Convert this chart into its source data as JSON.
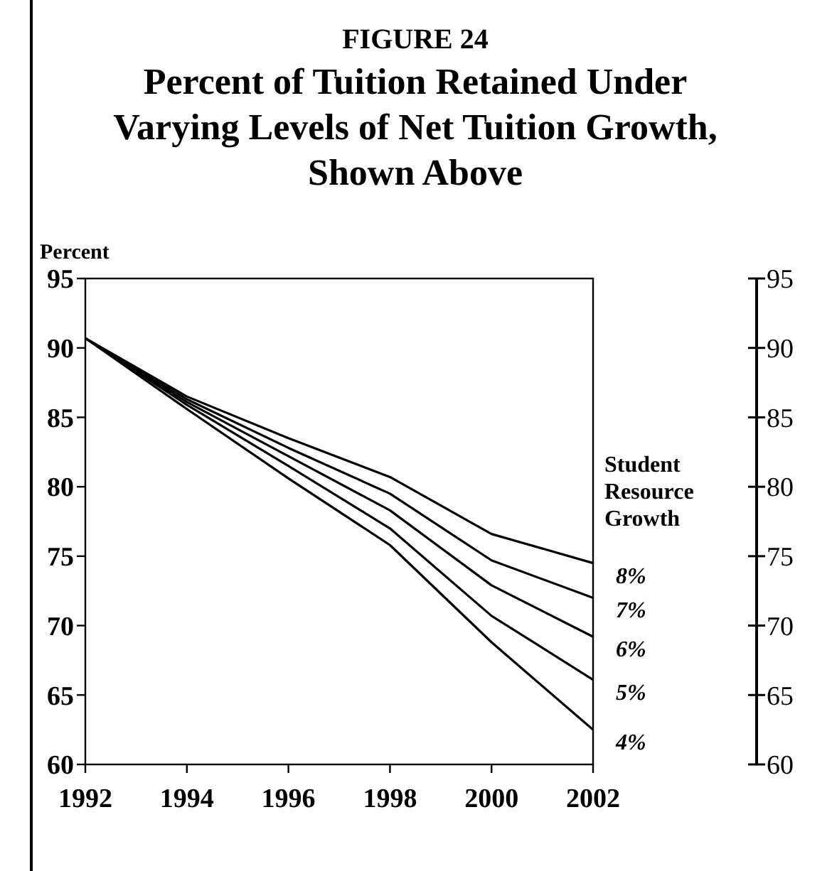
{
  "chart_data": {
    "type": "line",
    "title": "FIGURE 24",
    "subtitle": "Percent of Tuition Retained Under Varying Levels of Net Tuition Growth, Shown Above",
    "ylabel": "Percent",
    "legend_title": "Student Resource Growth",
    "x": [
      1992,
      1994,
      1996,
      1998,
      2000,
      2002
    ],
    "xlim": [
      1992,
      2002
    ],
    "xticks": [
      1992,
      1994,
      1996,
      1998,
      2000,
      2002
    ],
    "ylim": [
      60,
      95
    ],
    "yticks": [
      60,
      65,
      70,
      75,
      80,
      85,
      90,
      95
    ],
    "y2lim": [
      60,
      95
    ],
    "y2ticks": [
      60,
      65,
      70,
      75,
      80,
      85,
      90,
      95
    ],
    "grid": false,
    "legend": false,
    "marker": "none",
    "line_style": "solid",
    "series": [
      {
        "name": "8%",
        "color": "#000000",
        "values": [
          90.7,
          86.5,
          83.5,
          80.7,
          76.6,
          74.5
        ]
      },
      {
        "name": "7%",
        "color": "#000000",
        "values": [
          90.7,
          86.3,
          82.8,
          79.5,
          74.7,
          72.0
        ]
      },
      {
        "name": "6%",
        "color": "#000000",
        "values": [
          90.7,
          86.1,
          82.2,
          78.3,
          72.9,
          69.2
        ]
      },
      {
        "name": "5%",
        "color": "#000000",
        "values": [
          90.7,
          85.9,
          81.5,
          77.0,
          70.7,
          66.1
        ]
      },
      {
        "name": "4%",
        "color": "#000000",
        "values": [
          90.7,
          85.6,
          80.6,
          75.8,
          68.8,
          62.5
        ]
      }
    ]
  }
}
